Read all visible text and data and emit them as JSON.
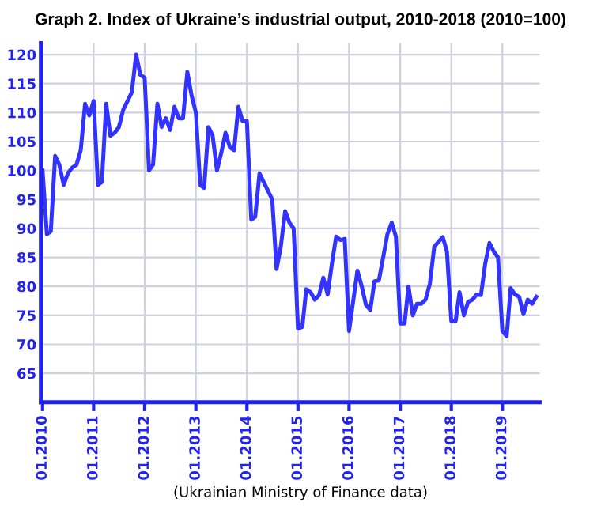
{
  "chart_data": {
    "type": "line",
    "title": "Graph 2. Index of Ukraine’s industrial output, 2010-2018 (2010=100)",
    "x": [
      "2010-01",
      "2010-02",
      "2010-03",
      "2010-04",
      "2010-05",
      "2010-06",
      "2010-07",
      "2010-08",
      "2010-09",
      "2010-10",
      "2010-11",
      "2010-12",
      "2011-01",
      "2011-02",
      "2011-03",
      "2011-04",
      "2011-05",
      "2011-06",
      "2011-07",
      "2011-08",
      "2011-09",
      "2011-10",
      "2011-11",
      "2011-12",
      "2012-01",
      "2012-02",
      "2012-03",
      "2012-04",
      "2012-05",
      "2012-06",
      "2012-07",
      "2012-08",
      "2012-09",
      "2012-10",
      "2012-11",
      "2012-12",
      "2013-01",
      "2013-02",
      "2013-03",
      "2013-04",
      "2013-05",
      "2013-06",
      "2013-07",
      "2013-08",
      "2013-09",
      "2013-10",
      "2013-11",
      "2013-12",
      "2014-01",
      "2014-02",
      "2014-03",
      "2014-04",
      "2014-05",
      "2014-06",
      "2014-07",
      "2014-08",
      "2014-09",
      "2014-10",
      "2014-11",
      "2014-12",
      "2015-01",
      "2015-02",
      "2015-03",
      "2015-04",
      "2015-05",
      "2015-06",
      "2015-07",
      "2015-08",
      "2015-09",
      "2015-10",
      "2015-11",
      "2015-12",
      "2016-01",
      "2016-02",
      "2016-03",
      "2016-04",
      "2016-05",
      "2016-06",
      "2016-07",
      "2016-08",
      "2016-09",
      "2016-10",
      "2016-11",
      "2016-12",
      "2017-01",
      "2017-02",
      "2017-03",
      "2017-04",
      "2017-05",
      "2017-06",
      "2017-07",
      "2017-08",
      "2017-09",
      "2017-10",
      "2017-11",
      "2017-12",
      "2018-01",
      "2018-02",
      "2018-03",
      "2018-04",
      "2018-05",
      "2018-06",
      "2018-07",
      "2018-08",
      "2018-09",
      "2018-10",
      "2018-11",
      "2018-12",
      "2019-01",
      "2019-02",
      "2019-03",
      "2019-04",
      "2019-05",
      "2019-06",
      "2019-07",
      "2019-08",
      "2019-09"
    ],
    "series": [
      {
        "color": "#3333ff",
        "values": [
          100,
          89,
          89.5,
          102.5,
          101,
          97.5,
          99.5,
          100.5,
          101,
          103.5,
          111.5,
          109.5,
          112,
          97.5,
          98,
          111.5,
          106,
          106.5,
          107.5,
          110.5,
          112,
          113.5,
          120,
          116.5,
          116,
          100,
          101,
          111.5,
          107.5,
          109,
          107,
          111,
          109,
          109,
          117,
          113,
          110,
          97.5,
          97,
          107.5,
          106,
          100,
          103,
          106.5,
          104,
          103.5,
          111,
          108.5,
          108.5,
          91.5,
          92,
          99.5,
          98,
          96.5,
          95,
          83,
          87,
          93,
          91,
          90,
          72.7,
          73,
          79.5,
          79,
          77.7,
          78.5,
          81.5,
          78.6,
          84,
          88.6,
          88,
          88.2,
          72.3,
          77.7,
          82.7,
          80,
          76.8,
          75.9,
          80.9,
          81,
          85,
          89,
          91,
          88.6,
          73.6,
          73.6,
          80,
          75,
          77,
          77,
          77.7,
          80.5,
          86.8,
          87.7,
          88.5,
          86,
          74,
          74,
          79,
          75,
          77.3,
          77.7,
          78.6,
          78.5,
          84,
          87.5,
          86,
          85,
          72.3,
          71.4,
          79.7,
          78.6,
          78.2,
          75.2,
          77.7,
          77,
          78.2
        ]
      }
    ],
    "xlim": [
      "2009-12-20",
      "2019-09-25"
    ],
    "xticks": [
      {
        "value": "2010-01",
        "label": "01.2010"
      },
      {
        "value": "2011-01",
        "label": "01.2011"
      },
      {
        "value": "2012-01",
        "label": "01.2012"
      },
      {
        "value": "2013-01",
        "label": "01.2013"
      },
      {
        "value": "2014-01",
        "label": "01.2014"
      },
      {
        "value": "2015-01",
        "label": "01.2015"
      },
      {
        "value": "2016-01",
        "label": "01.2016"
      },
      {
        "value": "2017-01",
        "label": "01.2017"
      },
      {
        "value": "2018-01",
        "label": "01.2018"
      },
      {
        "value": "2019-01",
        "label": "01.2019"
      }
    ],
    "ylim": [
      60,
      122
    ],
    "yticks": [
      65,
      70,
      75,
      80,
      85,
      90,
      95,
      100,
      105,
      110,
      115,
      120
    ],
    "grid": true,
    "marker": "none",
    "line_style": "solid",
    "annotations": [
      "(Ukrainian Ministry of Finance data)"
    ]
  }
}
